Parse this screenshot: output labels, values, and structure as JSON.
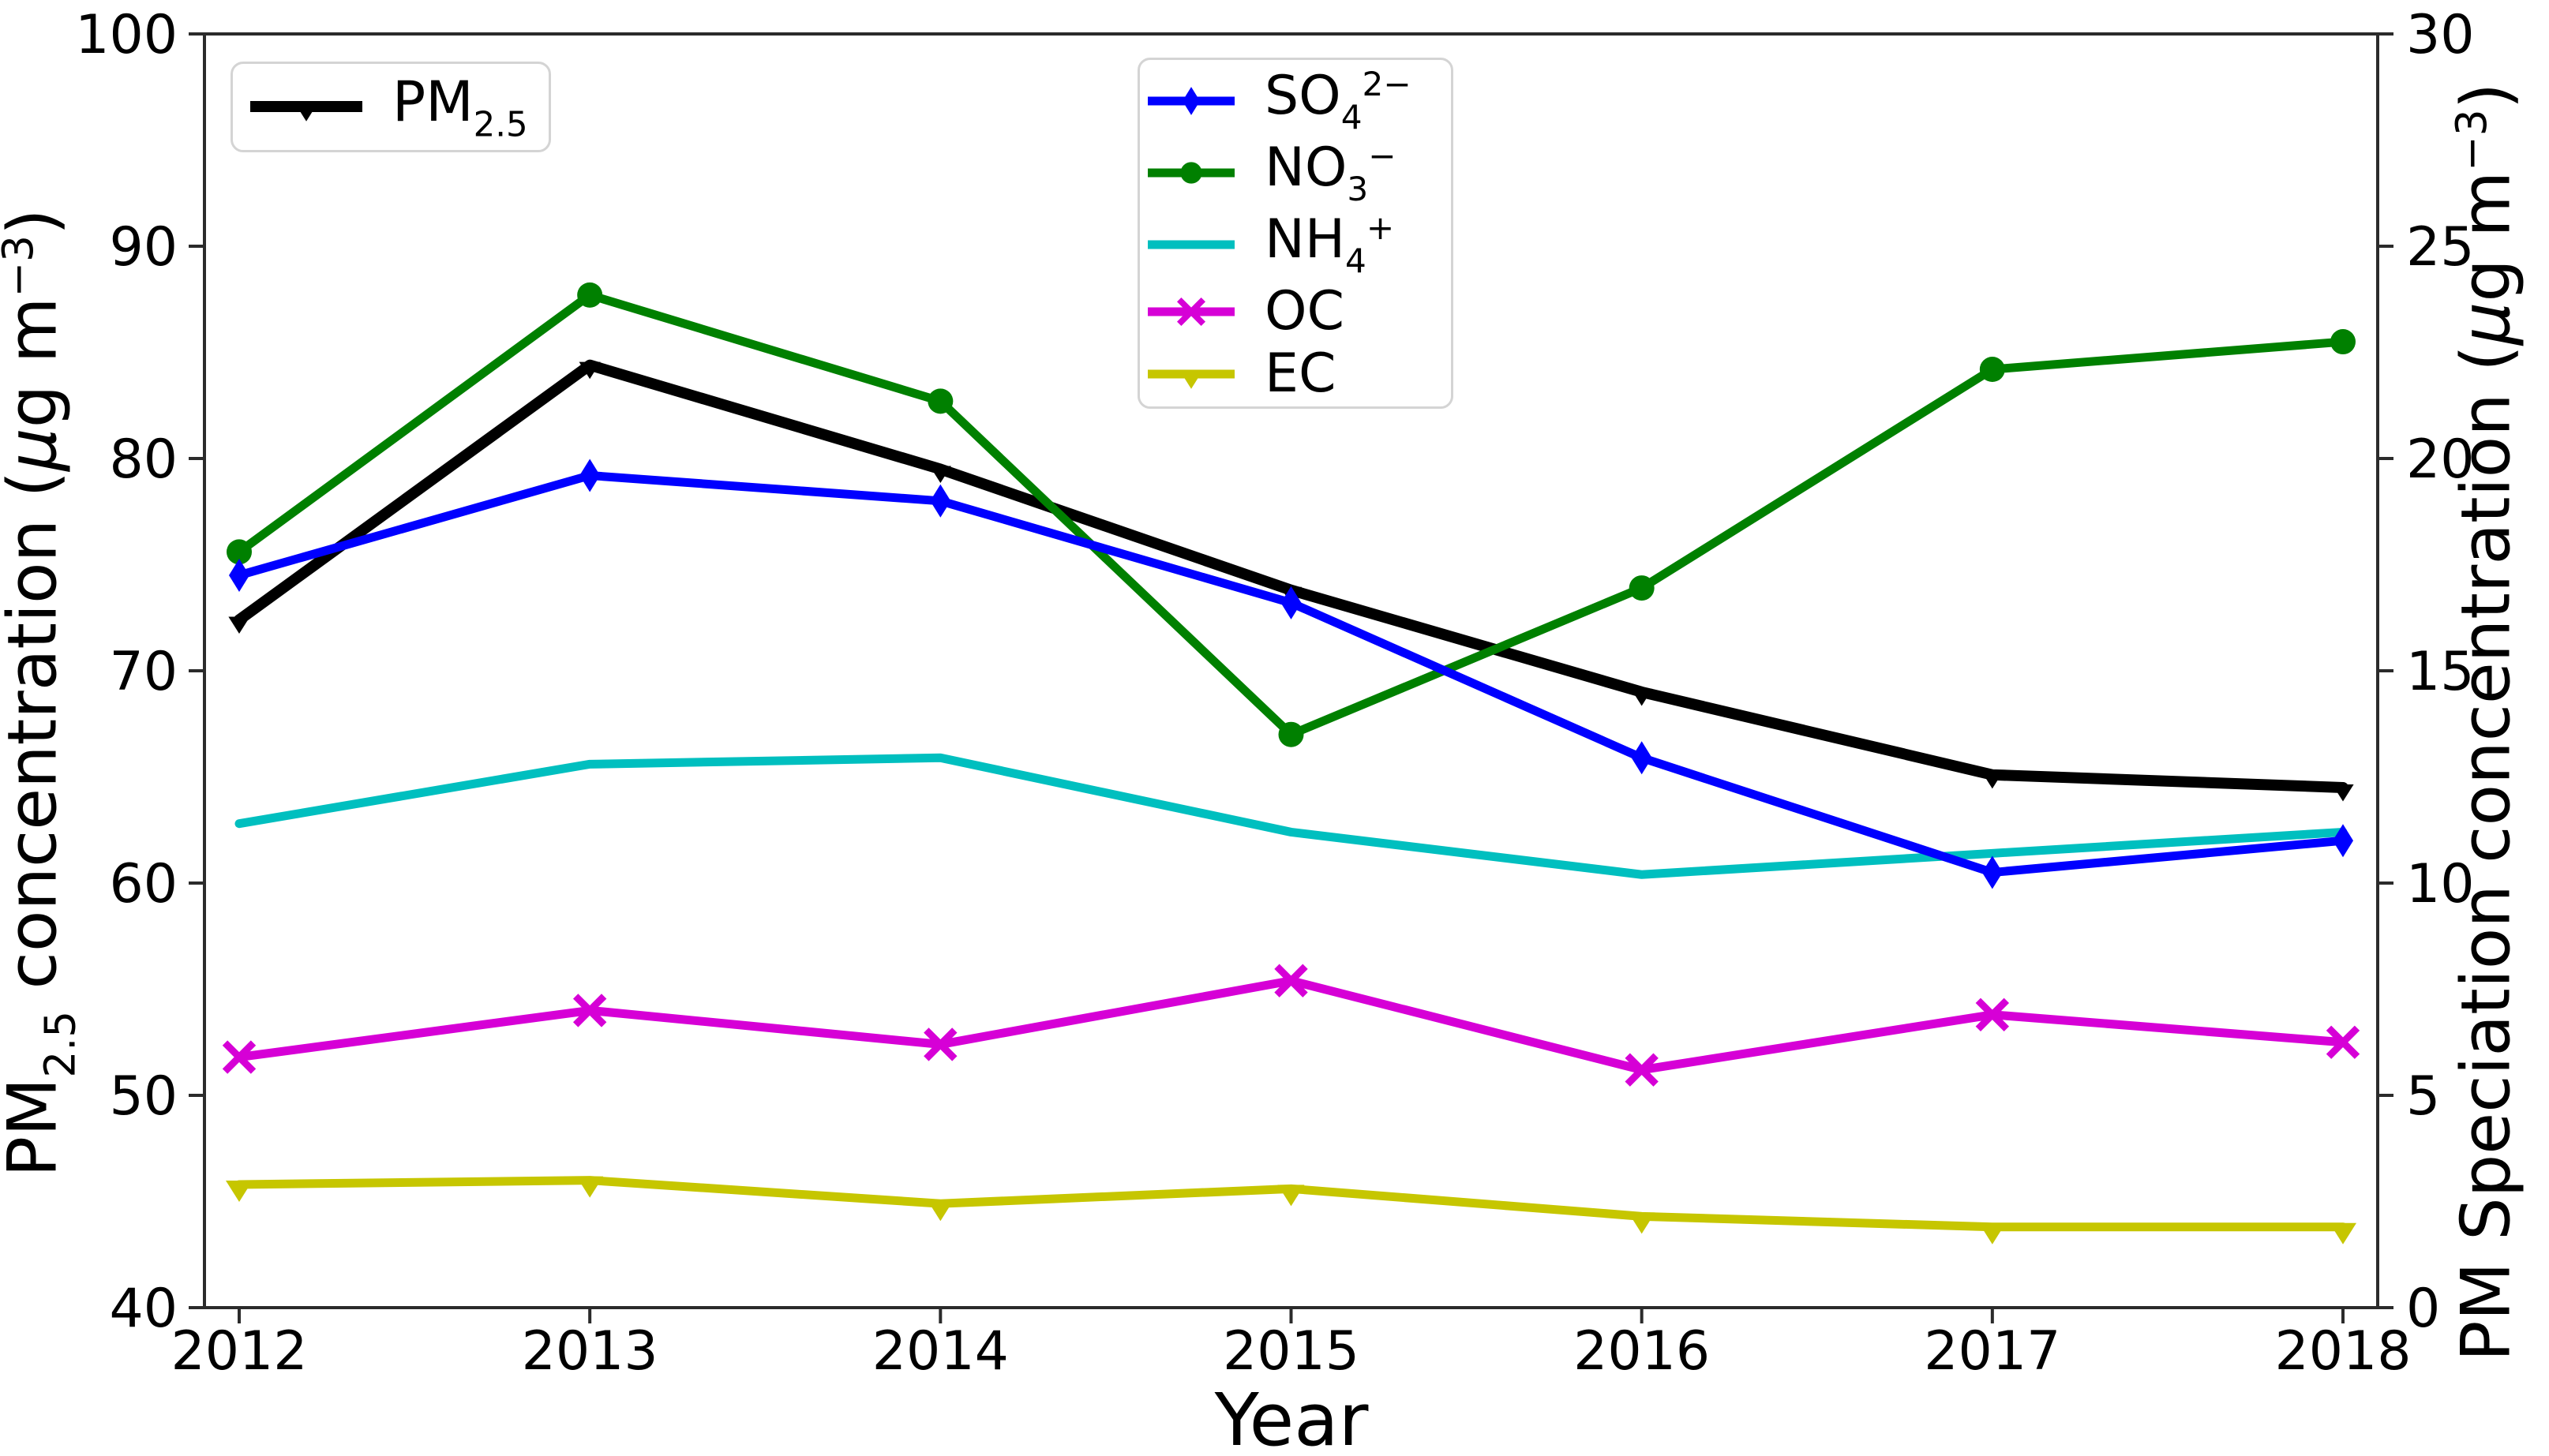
{
  "figure": {
    "background": "#ffffff",
    "spine_color": "#2b2b2b",
    "tick_color": "#2b2b2b",
    "text_color": "#000000"
  },
  "chart_data": {
    "type": "line",
    "title": "",
    "xlabel": "Year",
    "x": [
      2012,
      2013,
      2014,
      2015,
      2016,
      2017,
      2018
    ],
    "left_axis": {
      "label_text": "PM2.5 concentration (μg m−3)",
      "label_parts": [
        {
          "t": "PM"
        },
        {
          "t": "2.5",
          "s": "sub"
        },
        {
          "t": " concentration ("
        },
        {
          "t": "μ",
          "s": "ital"
        },
        {
          "t": "g m"
        },
        {
          "t": "−3",
          "s": "sup"
        },
        {
          "t": ")"
        }
      ],
      "range": [
        40,
        100
      ],
      "ticks": [
        40,
        50,
        60,
        70,
        80,
        90,
        100
      ]
    },
    "right_axis": {
      "label_text": "PM Speciation concentration (μg m−3)",
      "label_parts": [
        {
          "t": "PM Speciation concentration ("
        },
        {
          "t": "μ",
          "s": "ital"
        },
        {
          "t": "g m"
        },
        {
          "t": "−3",
          "s": "sup"
        },
        {
          "t": ")"
        }
      ],
      "range": [
        0,
        30
      ],
      "ticks": [
        0,
        5,
        10,
        15,
        20,
        25,
        30
      ]
    },
    "grid": false,
    "legend_positions": {
      "pm25_legend": "upper left",
      "species_legend": "upper center"
    },
    "series": [
      {
        "name": "PM2.5",
        "label_text": "PM2.5",
        "label_parts": [
          {
            "t": "PM"
          },
          {
            "t": "2.5",
            "s": "sub"
          }
        ],
        "axis": "left",
        "color": "#000000",
        "marker": "tri-down",
        "line_width": 14,
        "values": [
          72.4,
          84.4,
          79.5,
          73.8,
          69.0,
          65.1,
          64.5
        ]
      },
      {
        "name": "SO4^2-",
        "label_text": "SO₄²⁻",
        "label_parts": [
          {
            "t": "SO"
          },
          {
            "t": "4",
            "s": "sub"
          },
          {
            "t": "2−",
            "s": "sup"
          }
        ],
        "axis": "right",
        "color": "#0000ff",
        "marker": "thin-diamond",
        "line_width": 11,
        "values": [
          17.25,
          19.6,
          19.0,
          16.6,
          12.95,
          10.25,
          11.0
        ]
      },
      {
        "name": "NO3^-",
        "label_text": "NO₃⁻",
        "label_parts": [
          {
            "t": "NO"
          },
          {
            "t": "3",
            "s": "sub"
          },
          {
            "t": "−",
            "s": "sup"
          }
        ],
        "axis": "right",
        "color": "#008000",
        "marker": "circle",
        "line_width": 11,
        "values": [
          17.8,
          23.85,
          21.35,
          13.5,
          16.95,
          22.1,
          22.75
        ]
      },
      {
        "name": "NH4^+",
        "label_text": "NH₄⁺",
        "label_parts": [
          {
            "t": "NH"
          },
          {
            "t": "4",
            "s": "sub"
          },
          {
            "t": "+",
            "s": "sup"
          }
        ],
        "axis": "right",
        "color": "#00bfbf",
        "marker": "none",
        "line_width": 11,
        "values": [
          11.4,
          12.8,
          12.95,
          11.2,
          10.2,
          10.7,
          11.2
        ]
      },
      {
        "name": "OC",
        "label_text": "OC",
        "label_parts": [
          {
            "t": "OC"
          }
        ],
        "axis": "right",
        "color": "#d600d6",
        "marker": "x",
        "line_width": 11,
        "values": [
          5.9,
          7.0,
          6.2,
          7.7,
          5.6,
          6.9,
          6.25
        ]
      },
      {
        "name": "EC",
        "label_text": "EC",
        "label_parts": [
          {
            "t": "EC"
          }
        ],
        "axis": "right",
        "color": "#c6c600",
        "marker": "tri-down",
        "line_width": 11,
        "values": [
          2.9,
          3.0,
          2.45,
          2.8,
          2.15,
          1.9,
          1.9
        ]
      }
    ]
  }
}
